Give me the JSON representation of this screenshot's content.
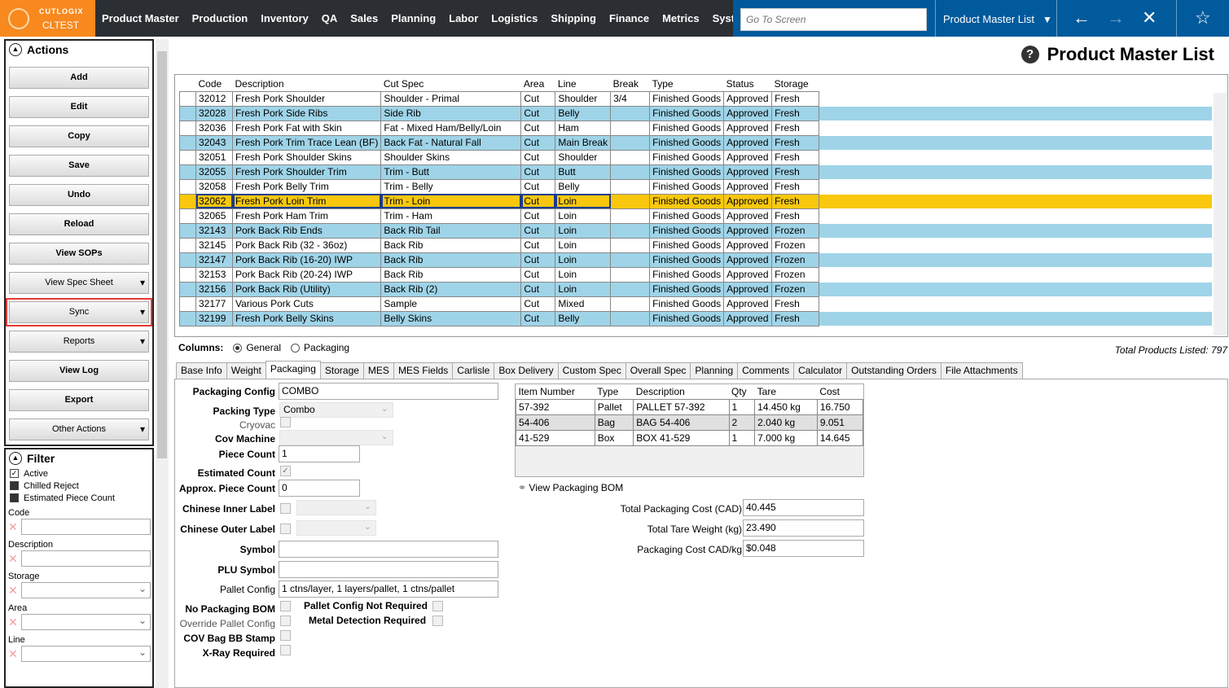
{
  "app": {
    "brand": "CUTLOGIX",
    "environment": "CLTEST"
  },
  "nav": [
    "Product Master",
    "Production",
    "Inventory",
    "QA",
    "Sales",
    "Planning",
    "Labor",
    "Logistics",
    "Shipping",
    "Finance",
    "Metrics",
    "System"
  ],
  "goto_placeholder": "Go To Screen",
  "screen_selector": "Product Master List",
  "page_title": "Product Master List",
  "actions": {
    "title": "Actions",
    "buttons": [
      {
        "label": "Add",
        "dropdown": false
      },
      {
        "label": "Edit",
        "dropdown": false
      },
      {
        "label": "Copy",
        "dropdown": false
      },
      {
        "label": "Save",
        "dropdown": false
      },
      {
        "label": "Undo",
        "dropdown": false
      },
      {
        "label": "Reload",
        "dropdown": false
      },
      {
        "label": "View SOPs",
        "dropdown": false
      },
      {
        "label": "View Spec Sheet",
        "dropdown": true
      },
      {
        "label": "Sync",
        "dropdown": true,
        "highlighted": true
      },
      {
        "label": "Reports",
        "dropdown": true
      },
      {
        "label": "View Log",
        "dropdown": false
      },
      {
        "label": "Export",
        "dropdown": false
      },
      {
        "label": "Other Actions",
        "dropdown": true
      }
    ]
  },
  "filter": {
    "title": "Filter",
    "checks": [
      {
        "label": "Active",
        "state": "checked"
      },
      {
        "label": "Chilled Reject",
        "state": "indeterminate"
      },
      {
        "label": "Estimated Piece Count",
        "state": "indeterminate"
      }
    ],
    "fields": [
      {
        "label": "Code",
        "select": false
      },
      {
        "label": "Description",
        "select": false
      },
      {
        "label": "Storage",
        "select": true
      },
      {
        "label": "Area",
        "select": true
      },
      {
        "label": "Line",
        "select": true
      }
    ]
  },
  "grid": {
    "columns": [
      "Code",
      "Description",
      "Cut Spec",
      "Area",
      "Line",
      "Break",
      "Type",
      "Status",
      "Storage"
    ],
    "selected_index": 7,
    "rows": [
      [
        "32012",
        "Fresh Pork Shoulder",
        "Shoulder - Primal",
        "Cut",
        "Shoulder",
        "3/4",
        "Finished Goods",
        "Approved",
        "Fresh"
      ],
      [
        "32028",
        "Fresh Pork Side Ribs",
        "Side Rib",
        "Cut",
        "Belly",
        "",
        "Finished Goods",
        "Approved",
        "Fresh"
      ],
      [
        "32036",
        "Fresh Pork Fat with Skin",
        "Fat - Mixed Ham/Belly/Loin",
        "Cut",
        "Ham",
        "",
        "Finished Goods",
        "Approved",
        "Fresh"
      ],
      [
        "32043",
        "Fresh Pork Trim Trace Lean (BF)",
        "Back Fat - Natural Fall",
        "Cut",
        "Main Break",
        "",
        "Finished Goods",
        "Approved",
        "Fresh"
      ],
      [
        "32051",
        "Fresh Pork Shoulder Skins",
        "Shoulder Skins",
        "Cut",
        "Shoulder",
        "",
        "Finished Goods",
        "Approved",
        "Fresh"
      ],
      [
        "32055",
        "Fresh Pork Shoulder Trim",
        "Trim - Butt",
        "Cut",
        "Butt",
        "",
        "Finished Goods",
        "Approved",
        "Fresh"
      ],
      [
        "32058",
        "Fresh Pork Belly Trim",
        "Trim - Belly",
        "Cut",
        "Belly",
        "",
        "Finished Goods",
        "Approved",
        "Fresh"
      ],
      [
        "32062",
        "Fresh Pork Loin Trim",
        "Trim - Loin",
        "Cut",
        "Loin",
        "",
        "Finished Goods",
        "Approved",
        "Fresh"
      ],
      [
        "32065",
        "Fresh Pork Ham Trim",
        "Trim - Ham",
        "Cut",
        "Loin",
        "",
        "Finished Goods",
        "Approved",
        "Fresh"
      ],
      [
        "32143",
        "Pork Back Rib Ends",
        "Back Rib Tail",
        "Cut",
        "Loin",
        "",
        "Finished Goods",
        "Approved",
        "Frozen"
      ],
      [
        "32145",
        "Pork Back Rib (32 - 36oz)",
        "Back Rib",
        "Cut",
        "Loin",
        "",
        "Finished Goods",
        "Approved",
        "Frozen"
      ],
      [
        "32147",
        "Pork Back Rib (16-20) IWP",
        "Back Rib",
        "Cut",
        "Loin",
        "",
        "Finished Goods",
        "Approved",
        "Frozen"
      ],
      [
        "32153",
        "Pork Back Rib (20-24) IWP",
        "Back Rib",
        "Cut",
        "Loin",
        "",
        "Finished Goods",
        "Approved",
        "Frozen"
      ],
      [
        "32156",
        "Pork Back Rib (Utility)",
        "Back Rib (2)",
        "Cut",
        "Loin",
        "",
        "Finished Goods",
        "Approved",
        "Frozen"
      ],
      [
        "32177",
        "Various Pork Cuts",
        "Sample",
        "Cut",
        "Mixed",
        "",
        "Finished Goods",
        "Approved",
        "Fresh"
      ],
      [
        "32199",
        "Fresh Pork Belly Skins",
        "Belly Skins",
        "Cut",
        "Belly",
        "",
        "Finished Goods",
        "Approved",
        "Fresh"
      ]
    ]
  },
  "columns_option": {
    "label": "Columns:",
    "options": [
      "General",
      "Packaging"
    ],
    "selected": "General"
  },
  "total_products": "Total Products Listed: 797",
  "tabs": [
    "Base Info",
    "Weight",
    "Packaging",
    "Storage",
    "MES",
    "MES Fields",
    "Carlisle",
    "Box Delivery",
    "Custom Spec",
    "Overall Spec",
    "Planning",
    "Comments",
    "Calculator",
    "Outstanding Orders",
    "File Attachments"
  ],
  "active_tab": "Packaging",
  "packaging": {
    "packaging_config_label": "Packaging Config",
    "packaging_config": "COMBO",
    "packing_type_label": "Packing Type",
    "packing_type": "Combo",
    "cryovac_label": "Cryovac",
    "cov_machine_label": "Cov Machine",
    "piece_count_label": "Piece Count",
    "piece_count": "1",
    "estimated_count_label": "Estimated Count",
    "approx_piece_count_label": "Approx. Piece Count",
    "approx_piece_count": "0",
    "chinese_inner_label": "Chinese Inner Label",
    "chinese_outer_label": "Chinese Outer Label",
    "symbol_label": "Symbol",
    "plu_symbol_label": "PLU Symbol",
    "pallet_config_label": "Pallet Config",
    "pallet_config": "1 ctns/layer,  1 layers/pallet, 1 ctns/pallet",
    "no_packaging_bom_label": "No Packaging BOM",
    "override_pallet_config_label": "Override Pallet Config",
    "cov_bag_label": "COV Bag BB Stamp",
    "xray_label": "X-Ray Required",
    "pallet_not_required_label": "Pallet Config Not Required",
    "metal_detection_label": "Metal Detection Required"
  },
  "bom": {
    "columns": [
      "Item Number",
      "Type",
      "Description",
      "Qty",
      "Tare",
      "Cost"
    ],
    "rows": [
      [
        "57-392",
        "Pallet",
        "PALLET 57-392",
        "1",
        "14.450 kg",
        "16.750"
      ],
      [
        "54-406",
        "Bag",
        "BAG 54-406",
        "2",
        "2.040 kg",
        "9.051"
      ],
      [
        "41-529",
        "Box",
        "BOX 41-529",
        "1",
        "7.000 kg",
        "14.645"
      ]
    ],
    "view_link": "View Packaging BOM"
  },
  "totals": [
    {
      "label": "Total Packaging Cost (CAD)",
      "value": "40.445"
    },
    {
      "label": "Total Tare Weight (kg)",
      "value": "23.490"
    },
    {
      "label": "Packaging Cost CAD/kg",
      "value": "$0.048"
    }
  ]
}
